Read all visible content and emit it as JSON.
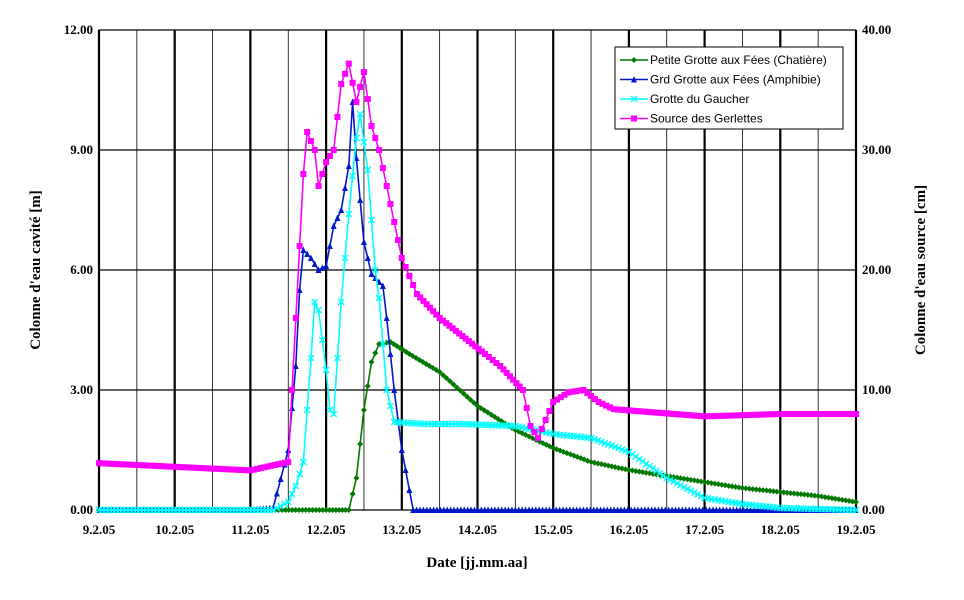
{
  "chart_data": {
    "type": "line",
    "xlabel": "Date [jj.mm.aa]",
    "ylabel_left": "Colonne d'eau cavité [m]",
    "ylabel_right": "Colonne d'eau source [cm]",
    "x_ticks": [
      "9.2.05",
      "10.2.05",
      "11.2.05",
      "12.2.05",
      "13.2.05",
      "14.2.05",
      "15.2.05",
      "16.2.05",
      "17.2.05",
      "18.2.05",
      "19.2.05"
    ],
    "x_range": [
      "9.2.05",
      "19.2.05"
    ],
    "y_left_ticks": [
      "0.00",
      "3.00",
      "6.00",
      "9.00",
      "12.00"
    ],
    "y_left_range": [
      0,
      12
    ],
    "y_right_ticks": [
      "0.00",
      "10.00",
      "20.00",
      "30.00",
      "40.00"
    ],
    "y_right_range": [
      0,
      40
    ],
    "grid": true,
    "legend_position": "top-right",
    "series": [
      {
        "name": "Petite Grotte aux Fées (Chatière)",
        "axis": "left",
        "color": "#007a00",
        "marker": "diamond",
        "points": [
          [
            0,
            0
          ],
          [
            3,
            0
          ],
          [
            3.3,
            0
          ],
          [
            3.4,
            0.8
          ],
          [
            3.5,
            2.5
          ],
          [
            3.6,
            3.7
          ],
          [
            3.7,
            4.15
          ],
          [
            3.85,
            4.2
          ],
          [
            4.1,
            3.9
          ],
          [
            4.5,
            3.45
          ],
          [
            5,
            2.6
          ],
          [
            5.5,
            2.0
          ],
          [
            6,
            1.55
          ],
          [
            6.5,
            1.2
          ],
          [
            7,
            1.0
          ],
          [
            7.5,
            0.85
          ],
          [
            8,
            0.7
          ],
          [
            8.5,
            0.55
          ],
          [
            9,
            0.45
          ],
          [
            9.5,
            0.35
          ],
          [
            10,
            0.2
          ]
        ]
      },
      {
        "name": "Grd Grotte aux Fées (Amphibie)",
        "axis": "left",
        "color": "#0018c8",
        "marker": "triangle",
        "points": [
          [
            0,
            0
          ],
          [
            2,
            0
          ],
          [
            2.3,
            0.05
          ],
          [
            2.5,
            1.5
          ],
          [
            2.6,
            3.6
          ],
          [
            2.65,
            5.5
          ],
          [
            2.7,
            6.5
          ],
          [
            2.8,
            6.3
          ],
          [
            2.9,
            6.0
          ],
          [
            3.0,
            6.1
          ],
          [
            3.1,
            7.1
          ],
          [
            3.2,
            7.5
          ],
          [
            3.3,
            8.6
          ],
          [
            3.35,
            10.2
          ],
          [
            3.4,
            8.8
          ],
          [
            3.5,
            6.7
          ],
          [
            3.6,
            5.9
          ],
          [
            3.75,
            5.6
          ],
          [
            3.8,
            4.8
          ],
          [
            3.9,
            3.0
          ],
          [
            4.0,
            1.5
          ],
          [
            4.15,
            0
          ],
          [
            10,
            0
          ]
        ]
      },
      {
        "name": "Grotte du Gaucher",
        "axis": "left",
        "color": "#00ffff",
        "marker": "x",
        "points": [
          [
            0,
            0
          ],
          [
            2.3,
            0
          ],
          [
            2.5,
            0.2
          ],
          [
            2.6,
            0.6
          ],
          [
            2.7,
            1.2
          ],
          [
            2.8,
            3.8
          ],
          [
            2.85,
            5.2
          ],
          [
            2.9,
            5.0
          ],
          [
            3.0,
            3.5
          ],
          [
            3.05,
            2.5
          ],
          [
            3.1,
            2.4
          ],
          [
            3.15,
            3.8
          ],
          [
            3.2,
            5.2
          ],
          [
            3.3,
            7.4
          ],
          [
            3.4,
            9.3
          ],
          [
            3.45,
            9.9
          ],
          [
            3.55,
            8.5
          ],
          [
            3.65,
            6.0
          ],
          [
            3.7,
            5.3
          ],
          [
            3.8,
            3.0
          ],
          [
            3.9,
            2.2
          ],
          [
            4.3,
            2.15
          ],
          [
            4.8,
            2.15
          ],
          [
            5.5,
            2.1
          ],
          [
            6,
            1.9
          ],
          [
            6.5,
            1.8
          ],
          [
            7,
            1.45
          ],
          [
            7.5,
            0.8
          ],
          [
            8,
            0.3
          ],
          [
            8.5,
            0.15
          ],
          [
            9,
            0.05
          ],
          [
            10,
            0
          ]
        ]
      },
      {
        "name": "Source des Gerlettes",
        "axis": "right",
        "color": "#ff00ff",
        "marker": "square",
        "points": [
          [
            0,
            3.9
          ],
          [
            1,
            3.6
          ],
          [
            2,
            3.3
          ],
          [
            2.5,
            4.0
          ],
          [
            2.7,
            28.0
          ],
          [
            2.75,
            31.5
          ],
          [
            2.85,
            30.0
          ],
          [
            2.9,
            27.0
          ],
          [
            3.0,
            29.0
          ],
          [
            3.1,
            30.0
          ],
          [
            3.2,
            35.5
          ],
          [
            3.3,
            37.2
          ],
          [
            3.4,
            34.0
          ],
          [
            3.5,
            36.5
          ],
          [
            3.6,
            32.0
          ],
          [
            3.7,
            30.0
          ],
          [
            3.8,
            27.0
          ],
          [
            3.9,
            24.0
          ],
          [
            4.0,
            21.0
          ],
          [
            4.2,
            18.0
          ],
          [
            4.5,
            16.0
          ],
          [
            4.8,
            14.5
          ],
          [
            5.1,
            13.0
          ],
          [
            5.3,
            12.0
          ],
          [
            5.6,
            10.0
          ],
          [
            5.7,
            7.0
          ],
          [
            5.8,
            6.0
          ],
          [
            6.0,
            9.0
          ],
          [
            6.2,
            9.8
          ],
          [
            6.4,
            10.0
          ],
          [
            6.6,
            9.0
          ],
          [
            6.8,
            8.4
          ],
          [
            7,
            8.3
          ],
          [
            8,
            7.8
          ],
          [
            9,
            8.0
          ],
          [
            10,
            8.0
          ]
        ]
      }
    ]
  }
}
